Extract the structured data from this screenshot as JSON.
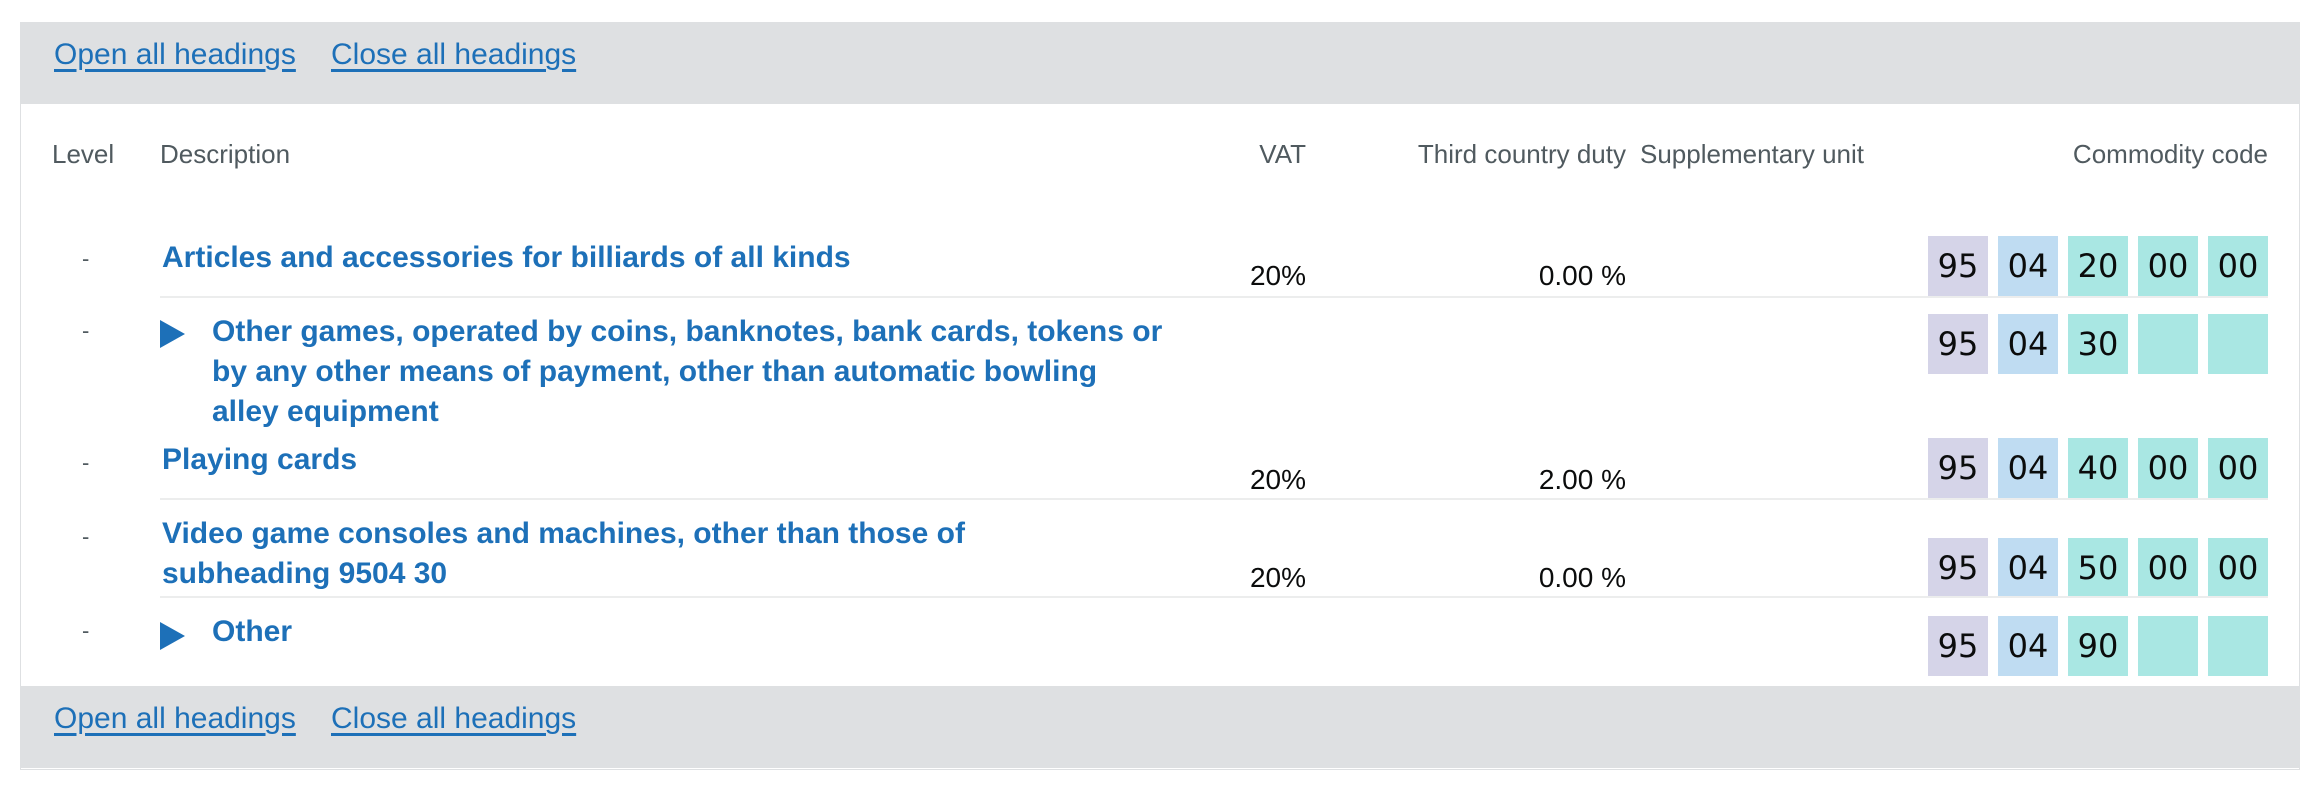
{
  "controls": {
    "open_all": "Open all headings",
    "close_all": "Close all headings"
  },
  "columns": {
    "level": "Level",
    "description": "Description",
    "vat": "VAT",
    "third_country_duty": "Third country duty",
    "supplementary_unit": "Supplementary unit",
    "commodity_code": "Commodity code"
  },
  "rows": [
    {
      "level": "-",
      "description": "Articles and accessories for billiards of all kinds",
      "expandable": false,
      "vat": "20%",
      "duty": "0.00 %",
      "code": [
        "95",
        "04",
        "20",
        "00",
        "00"
      ]
    },
    {
      "level": "-",
      "description": "Other games, operated by coins, banknotes, bank cards, tokens or by any other means of payment, other than automatic bowling alley equipment",
      "expandable": true,
      "vat": "",
      "duty": "",
      "code": [
        "95",
        "04",
        "30",
        "",
        ""
      ]
    },
    {
      "level": "-",
      "description": "Playing cards",
      "expandable": false,
      "vat": "20%",
      "duty": "2.00 %",
      "code": [
        "95",
        "04",
        "40",
        "00",
        "00"
      ]
    },
    {
      "level": "-",
      "description": "Video game consoles and machines, other than those of subheading 9504 30",
      "expandable": false,
      "vat": "20%",
      "duty": "0.00 %",
      "code": [
        "95",
        "04",
        "50",
        "00",
        "00"
      ]
    },
    {
      "level": "-",
      "description": "Other",
      "expandable": true,
      "vat": "",
      "duty": "",
      "code": [
        "95",
        "04",
        "90",
        "",
        ""
      ]
    }
  ],
  "colors": {
    "link": "#1d70b8",
    "bar": "#dee0e2",
    "chapter": "#d5d4e8",
    "heading": "#bfdcf2",
    "subheading": "#a9e7e3"
  }
}
